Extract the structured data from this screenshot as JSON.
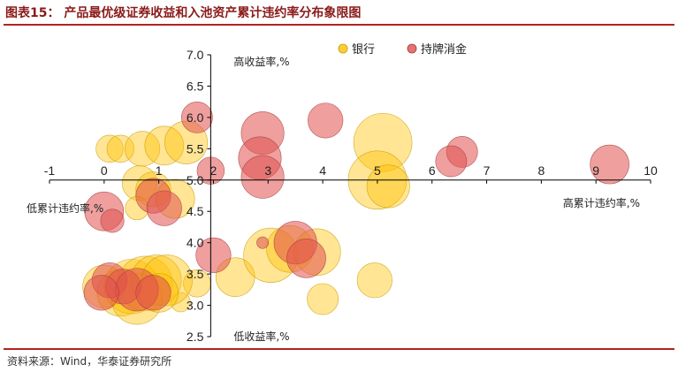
{
  "header": {
    "title": "图表15：  产品最优级证券收益和入池资产累计违约率分布象限图"
  },
  "footer": {
    "source": "资料来源：Wind，华泰证券研究所"
  },
  "chart_data": {
    "type": "scatter",
    "subtype": "bubble",
    "title": "",
    "xlabel": "",
    "ylabel": "",
    "xlim": [
      -1,
      10
    ],
    "ylim": [
      2.5,
      7.0
    ],
    "x_ticks": [
      "-1",
      "0",
      "1",
      "2",
      "3",
      "4",
      "5",
      "6",
      "7",
      "8",
      "9",
      "10"
    ],
    "y_ticks": [
      "7.0",
      "6.5",
      "6.0",
      "5.5",
      "5.0",
      "4.5",
      "4.0",
      "3.5",
      "3.0",
      "2.5"
    ],
    "axis_cross": {
      "x": 1.95,
      "y": 5.0
    },
    "grid": false,
    "legend_position": "top-right",
    "quadrant_labels": {
      "top": "高收益率,%",
      "bottom": "低收益率,%",
      "left": "低累计违约率,%",
      "right": "高累计违约率,%"
    },
    "colors": {
      "bank": "#FFC000",
      "consumer": "#E0504F",
      "axis": "#000000"
    },
    "series": [
      {
        "name": "银行",
        "points": [
          {
            "x": 0.1,
            "y": 5.5,
            "s": 0.7
          },
          {
            "x": 0.3,
            "y": 5.5,
            "s": 0.7
          },
          {
            "x": 0.7,
            "y": 5.5,
            "s": 0.9
          },
          {
            "x": 1.1,
            "y": 5.55,
            "s": 1.0
          },
          {
            "x": 1.5,
            "y": 5.6,
            "s": 1.1
          },
          {
            "x": 0.65,
            "y": 4.95,
            "s": 0.9
          },
          {
            "x": 0.9,
            "y": 4.85,
            "s": 0.9
          },
          {
            "x": 1.3,
            "y": 4.7,
            "s": 1.0
          },
          {
            "x": 0.6,
            "y": 4.55,
            "s": 0.6
          },
          {
            "x": 5.1,
            "y": 5.6,
            "s": 1.5
          },
          {
            "x": 5.0,
            "y": 5.0,
            "s": 1.5
          },
          {
            "x": 5.2,
            "y": 4.9,
            "s": 1.1
          },
          {
            "x": 2.4,
            "y": 3.45,
            "s": 1.0
          },
          {
            "x": 1.7,
            "y": 3.35,
            "s": 0.7
          },
          {
            "x": 3.05,
            "y": 3.8,
            "s": 1.4
          },
          {
            "x": 3.4,
            "y": 3.9,
            "s": 1.2
          },
          {
            "x": 3.9,
            "y": 3.85,
            "s": 1.2
          },
          {
            "x": 4.0,
            "y": 3.1,
            "s": 0.8
          },
          {
            "x": 4.95,
            "y": 3.4,
            "s": 0.9
          },
          {
            "x": 1.4,
            "y": 3.05,
            "s": 0.5
          },
          {
            "x": 0.0,
            "y": 3.3,
            "s": 1.1
          },
          {
            "x": 0.3,
            "y": 3.2,
            "s": 1.2
          },
          {
            "x": 0.5,
            "y": 3.3,
            "s": 1.4
          },
          {
            "x": 0.75,
            "y": 3.35,
            "s": 1.4
          },
          {
            "x": 0.95,
            "y": 3.4,
            "s": 1.3
          },
          {
            "x": 1.15,
            "y": 3.4,
            "s": 1.3
          },
          {
            "x": 0.6,
            "y": 3.1,
            "s": 1.3
          },
          {
            "x": 1.0,
            "y": 3.2,
            "s": 1.0
          }
        ]
      },
      {
        "name": "持牌消金",
        "points": [
          {
            "x": 1.7,
            "y": 6.0,
            "s": 0.8
          },
          {
            "x": 2.9,
            "y": 5.75,
            "s": 1.1
          },
          {
            "x": 2.85,
            "y": 5.35,
            "s": 1.1
          },
          {
            "x": 2.9,
            "y": 5.05,
            "s": 1.1
          },
          {
            "x": 4.05,
            "y": 5.95,
            "s": 0.9
          },
          {
            "x": 6.55,
            "y": 5.45,
            "s": 0.8
          },
          {
            "x": 6.35,
            "y": 5.3,
            "s": 0.8
          },
          {
            "x": 9.25,
            "y": 5.25,
            "s": 1.0
          },
          {
            "x": 1.95,
            "y": 5.15,
            "s": 0.7
          },
          {
            "x": 0.9,
            "y": 4.75,
            "s": 0.9
          },
          {
            "x": 1.1,
            "y": 4.55,
            "s": 0.9
          },
          {
            "x": 0.0,
            "y": 4.5,
            "s": 1.0
          },
          {
            "x": 0.15,
            "y": 4.35,
            "s": 0.6
          },
          {
            "x": 2.0,
            "y": 3.8,
            "s": 0.9
          },
          {
            "x": 2.9,
            "y": 4.0,
            "s": 0.3
          },
          {
            "x": 3.5,
            "y": 4.0,
            "s": 1.1
          },
          {
            "x": 3.7,
            "y": 3.75,
            "s": 1.0
          },
          {
            "x": 0.1,
            "y": 3.4,
            "s": 0.9
          },
          {
            "x": 0.35,
            "y": 3.3,
            "s": 0.9
          },
          {
            "x": 0.6,
            "y": 3.25,
            "s": 1.1
          },
          {
            "x": 0.9,
            "y": 3.2,
            "s": 0.9
          },
          {
            "x": -0.05,
            "y": 3.2,
            "s": 0.9
          }
        ]
      }
    ]
  }
}
